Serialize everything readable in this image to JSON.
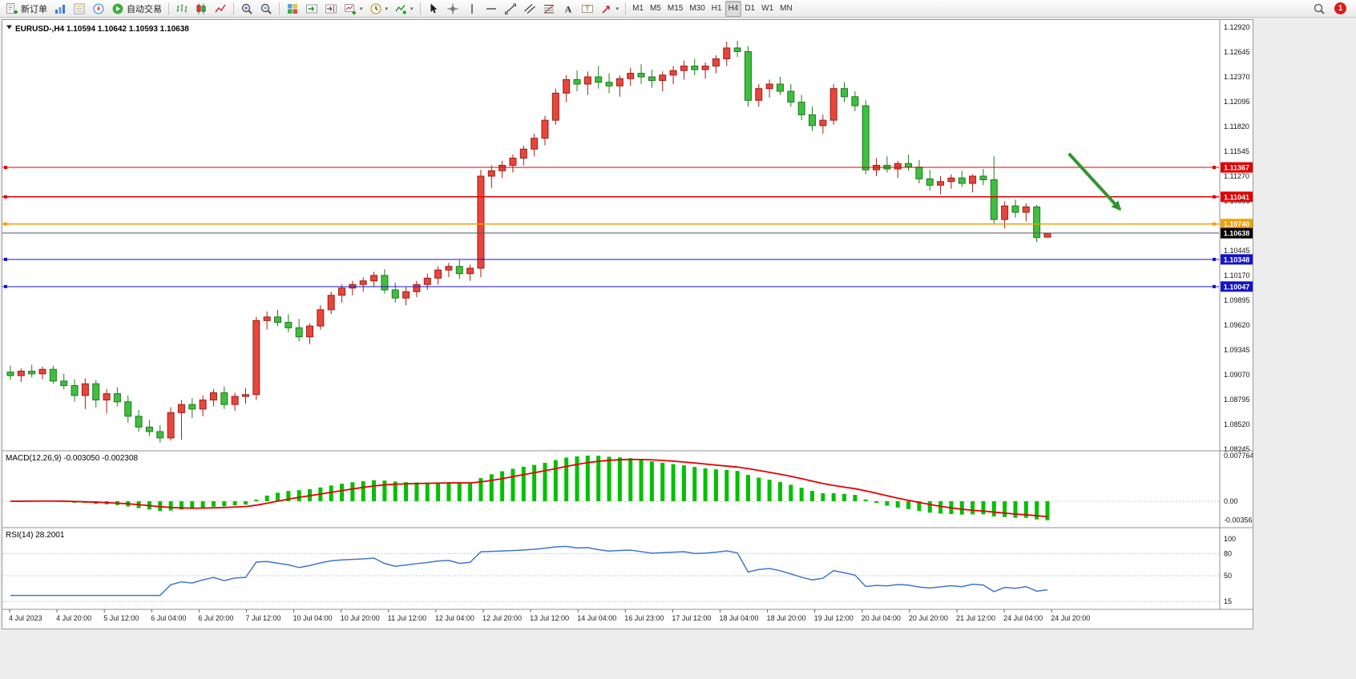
{
  "toolbar": {
    "notification_count": "1",
    "groups": [
      {
        "name": "trade",
        "buttons": [
          {
            "name": "new-order-button",
            "icon": "new-order-icon",
            "label": "新订单"
          },
          {
            "name": "market-watch-button",
            "icon": "market-watch-icon"
          },
          {
            "name": "data-window-button",
            "icon": "data-window-icon"
          },
          {
            "name": "navigator-button",
            "icon": "navigator-icon"
          },
          {
            "name": "auto-trading-button",
            "icon": "play-icon",
            "label": "自动交易"
          }
        ]
      },
      {
        "name": "chart-type",
        "buttons": [
          {
            "name": "bar-chart-button",
            "icon": "bar-chart-icon"
          },
          {
            "name": "candlestick-button",
            "icon": "candlestick-icon"
          },
          {
            "name": "line-chart-button",
            "icon": "line-chart-icon"
          }
        ]
      },
      {
        "name": "zoom",
        "buttons": [
          {
            "name": "zoom-in-button",
            "icon": "zoom-in-icon"
          },
          {
            "name": "zoom-out-button",
            "icon": "zoom-out-icon"
          }
        ]
      },
      {
        "name": "windows",
        "buttons": [
          {
            "name": "tile-windows-button",
            "icon": "tile-windows-icon"
          },
          {
            "name": "auto-scroll-button",
            "icon": "auto-scroll-icon"
          },
          {
            "name": "chart-shift-button",
            "icon": "chart-shift-icon"
          },
          {
            "name": "new-chart-button",
            "icon": "new-chart-icon",
            "dropdown": true
          },
          {
            "name": "period-button",
            "icon": "clock-icon",
            "dropdown": true
          },
          {
            "name": "indicators-button",
            "icon": "indicators-icon",
            "dropdown": true
          }
        ]
      },
      {
        "name": "drawing",
        "buttons": [
          {
            "name": "cursor-button",
            "icon": "cursor-icon"
          },
          {
            "name": "crosshair-button",
            "icon": "crosshair-icon"
          },
          {
            "name": "vertical-line-button",
            "icon": "vertical-line-icon"
          },
          {
            "name": "horizontal-line-button",
            "icon": "horizontal-line-icon"
          },
          {
            "name": "trendline-button",
            "icon": "trendline-icon"
          },
          {
            "name": "channel-button",
            "icon": "channel-icon"
          },
          {
            "name": "fibonacci-button",
            "icon": "fibonacci-icon"
          },
          {
            "name": "text-button",
            "icon": "text-icon"
          },
          {
            "name": "text-label-button",
            "icon": "text-label-icon"
          },
          {
            "name": "arrows-button",
            "icon": "arrow-icon",
            "dropdown": true
          }
        ]
      },
      {
        "name": "timeframes",
        "buttons": [
          {
            "name": "timeframe-m1",
            "label": "M1"
          },
          {
            "name": "timeframe-m5",
            "label": "M5"
          },
          {
            "name": "timeframe-m15",
            "label": "M15"
          },
          {
            "name": "timeframe-m30",
            "label": "M30"
          },
          {
            "name": "timeframe-h1",
            "label": "H1"
          },
          {
            "name": "timeframe-h4",
            "label": "H4",
            "active": true
          },
          {
            "name": "timeframe-d1",
            "label": "D1"
          },
          {
            "name": "timeframe-w1",
            "label": "W1"
          },
          {
            "name": "timeframe-mn",
            "label": "MN"
          }
        ]
      }
    ]
  },
  "chart_data": {
    "type": "candlestick",
    "symbol": "EURUSD-",
    "timeframe": "H4",
    "quote": {
      "open": "1.10594",
      "high": "1.10642",
      "low": "1.10593",
      "close": "1.10638"
    },
    "colors": {
      "background": "#FFFFFF",
      "up_fill": "#E8453C",
      "up_stroke": "#9E1F17",
      "down_fill": "#3FBF3F",
      "down_stroke": "#1F7A1F"
    },
    "price_axis": [
      "1.12920",
      "1.12645",
      "1.12370",
      "1.12095",
      "1.11820",
      "1.11545",
      "1.11270",
      "1.10995",
      "1.10720",
      "1.10445",
      "1.10170",
      "1.09895",
      "1.09620",
      "1.09345",
      "1.09070",
      "1.08795",
      "1.08520",
      "1.08245"
    ],
    "time_axis": [
      "4 Jul 2023",
      "4 Jul 20:00",
      "5 Jul 12:00",
      "6 Jul 04:00",
      "6 Jul 20:00",
      "7 Jul 12:00",
      "10 Jul 04:00",
      "10 Jul 20:00",
      "11 Jul 12:00",
      "12 Jul 04:00",
      "12 Jul 20:00",
      "13 Jul 12:00",
      "14 Jul 04:00",
      "16 Jul 23:00",
      "17 Jul 12:00",
      "18 Jul 04:00",
      "18 Jul 20:00",
      "19 Jul 12:00",
      "20 Jul 04:00",
      "20 Jul 20:00",
      "21 Jul 12:00",
      "24 Jul 04:00",
      "24 Jul 20:00"
    ],
    "hlines": [
      {
        "name": "resistance-line-1",
        "price": 1.11367,
        "label": "1.11367",
        "color": "#E00000"
      },
      {
        "name": "resistance-line-2",
        "price": 1.11041,
        "label": "1.11041",
        "color": "#E00000"
      },
      {
        "name": "pivot-line",
        "price": 1.1074,
        "label": "1.10740",
        "color": "#F0A000"
      },
      {
        "name": "support-line-1",
        "price": 1.10348,
        "label": "1.10348",
        "color": "#1414C8"
      },
      {
        "name": "support-line-2",
        "price": 1.10047,
        "label": "1.10047",
        "color": "#1414C8"
      }
    ],
    "current_price": {
      "price": 1.10638,
      "label": "1.10638",
      "line_color": "#555555",
      "box_color": "#000000"
    },
    "arrow_annotation": {
      "from_index": 99,
      "from_price": 1.1152,
      "to_index": 103.8,
      "to_price": 1.109,
      "color": "#2E962E"
    },
    "indicators": [
      {
        "name": "MACD",
        "label": "MACD(12,26,9) -0.003050 -0.002308",
        "params": [
          12,
          26,
          9
        ],
        "values_text": [
          "-0.003050",
          "-0.002308"
        ],
        "axis": [
          "0.007764",
          "0.00",
          "-0.003565"
        ],
        "histogram_color": "#00C000",
        "signal_color": "#E80000"
      },
      {
        "name": "RSI",
        "label": "RSI(14) 28.2001",
        "params": [
          14
        ],
        "value": 28.2001,
        "axis": [
          "100",
          "80",
          "50",
          "15"
        ],
        "levels": [
          80,
          50,
          15
        ],
        "line_color": "#3F77C8"
      }
    ],
    "candles": [
      [
        1.091,
        1.0917,
        1.0901,
        1.0906
      ],
      [
        1.0906,
        1.0914,
        1.0899,
        1.0911
      ],
      [
        1.0911,
        1.0918,
        1.0904,
        1.0908
      ],
      [
        1.0908,
        1.0916,
        1.0902,
        1.0913
      ],
      [
        1.0913,
        1.0917,
        1.0897,
        1.09
      ],
      [
        1.09,
        1.0908,
        1.0891,
        1.0895
      ],
      [
        1.0895,
        1.0902,
        1.0877,
        1.0884
      ],
      [
        1.0884,
        1.0903,
        1.0869,
        1.0897
      ],
      [
        1.0897,
        1.0901,
        1.0871,
        1.0879
      ],
      [
        1.0879,
        1.0891,
        1.0864,
        1.0886
      ],
      [
        1.0886,
        1.0893,
        1.0872,
        1.0877
      ],
      [
        1.0877,
        1.0884,
        1.0854,
        1.0861
      ],
      [
        1.0861,
        1.0868,
        1.0844,
        1.0849
      ],
      [
        1.0849,
        1.0857,
        1.0839,
        1.0844
      ],
      [
        1.0844,
        1.0851,
        1.0832,
        1.0837
      ],
      [
        1.0837,
        1.0871,
        1.0834,
        1.0865
      ],
      [
        1.0865,
        1.0879,
        1.0835,
        1.0874
      ],
      [
        1.0874,
        1.0881,
        1.0859,
        1.0869
      ],
      [
        1.0869,
        1.0884,
        1.0861,
        1.0879
      ],
      [
        1.0879,
        1.0891,
        1.0872,
        1.0887
      ],
      [
        1.0887,
        1.0894,
        1.0869,
        1.0874
      ],
      [
        1.0874,
        1.0887,
        1.0867,
        1.0883
      ],
      [
        1.0883,
        1.0892,
        1.0875,
        1.0885
      ],
      [
        1.0885,
        1.0971,
        1.0879,
        1.0967
      ],
      [
        1.0967,
        1.0977,
        1.0957,
        1.0971
      ],
      [
        1.0971,
        1.0979,
        1.0961,
        1.0965
      ],
      [
        1.0965,
        1.0974,
        1.0954,
        1.0959
      ],
      [
        1.0959,
        1.0969,
        1.0944,
        1.0949
      ],
      [
        1.0949,
        1.0964,
        1.0941,
        1.0961
      ],
      [
        1.0961,
        1.0984,
        1.0957,
        1.0979
      ],
      [
        1.0979,
        1.0999,
        1.0974,
        1.0995
      ],
      [
        1.0995,
        1.1007,
        1.0987,
        1.1003
      ],
      [
        1.1003,
        1.1011,
        1.0995,
        1.1007
      ],
      [
        1.1007,
        1.1015,
        1.0999,
        1.1011
      ],
      [
        1.1011,
        1.1021,
        1.1004,
        1.1017
      ],
      [
        1.1017,
        1.1024,
        1.0997,
        1.1001
      ],
      [
        1.1001,
        1.1009,
        1.0987,
        1.0992
      ],
      [
        1.0992,
        1.1004,
        1.0984,
        1.0999
      ],
      [
        1.0999,
        1.1011,
        1.0993,
        1.1007
      ],
      [
        1.1007,
        1.1019,
        1.1001,
        1.1014
      ],
      [
        1.1014,
        1.1027,
        1.1007,
        1.1023
      ],
      [
        1.1023,
        1.1031,
        1.1015,
        1.1027
      ],
      [
        1.1027,
        1.1034,
        1.1013,
        1.1019
      ],
      [
        1.1019,
        1.1029,
        1.1011,
        1.1025
      ],
      [
        1.1025,
        1.1134,
        1.1015,
        1.1127
      ],
      [
        1.1127,
        1.1139,
        1.1114,
        1.1133
      ],
      [
        1.1133,
        1.1144,
        1.1125,
        1.1139
      ],
      [
        1.1139,
        1.1151,
        1.1131,
        1.1147
      ],
      [
        1.1147,
        1.1161,
        1.1139,
        1.1157
      ],
      [
        1.1157,
        1.1174,
        1.1149,
        1.1169
      ],
      [
        1.1169,
        1.1194,
        1.1161,
        1.1189
      ],
      [
        1.1189,
        1.1224,
        1.1184,
        1.1219
      ],
      [
        1.1219,
        1.1239,
        1.1209,
        1.1234
      ],
      [
        1.1234,
        1.1244,
        1.1221,
        1.1229
      ],
      [
        1.1229,
        1.1243,
        1.1217,
        1.1237
      ],
      [
        1.1237,
        1.1249,
        1.1224,
        1.1231
      ],
      [
        1.1231,
        1.1241,
        1.1219,
        1.1227
      ],
      [
        1.1227,
        1.1239,
        1.1215,
        1.1235
      ],
      [
        1.1235,
        1.1247,
        1.1227,
        1.1241
      ],
      [
        1.1241,
        1.1251,
        1.1229,
        1.1237
      ],
      [
        1.1237,
        1.1245,
        1.1225,
        1.1233
      ],
      [
        1.1233,
        1.1243,
        1.1221,
        1.1239
      ],
      [
        1.1239,
        1.1249,
        1.1229,
        1.1244
      ],
      [
        1.1244,
        1.1255,
        1.1234,
        1.1249
      ],
      [
        1.1249,
        1.1257,
        1.1239,
        1.1245
      ],
      [
        1.1245,
        1.1253,
        1.1235,
        1.1249
      ],
      [
        1.1249,
        1.1261,
        1.1241,
        1.1257
      ],
      [
        1.1257,
        1.1276,
        1.1249,
        1.1269
      ],
      [
        1.1269,
        1.1277,
        1.1259,
        1.1265
      ],
      [
        1.1265,
        1.1271,
        1.1204,
        1.1211
      ],
      [
        1.1211,
        1.1229,
        1.1204,
        1.1224
      ],
      [
        1.1224,
        1.1234,
        1.1214,
        1.1229
      ],
      [
        1.1229,
        1.1237,
        1.1217,
        1.1221
      ],
      [
        1.1221,
        1.1229,
        1.1204,
        1.1209
      ],
      [
        1.1209,
        1.1217,
        1.1189,
        1.1195
      ],
      [
        1.1195,
        1.1204,
        1.1177,
        1.1183
      ],
      [
        1.1183,
        1.1195,
        1.1174,
        1.1189
      ],
      [
        1.1189,
        1.1229,
        1.1184,
        1.1224
      ],
      [
        1.1224,
        1.1231,
        1.1209,
        1.1215
      ],
      [
        1.1215,
        1.1221,
        1.1199,
        1.1205
      ],
      [
        1.1205,
        1.1211,
        1.1129,
        1.1134
      ],
      [
        1.1134,
        1.1147,
        1.1127,
        1.1139
      ],
      [
        1.1139,
        1.1149,
        1.1131,
        1.1135
      ],
      [
        1.1135,
        1.1144,
        1.1125,
        1.1141
      ],
      [
        1.1141,
        1.1151,
        1.1133,
        1.1137
      ],
      [
        1.1137,
        1.1145,
        1.1119,
        1.1124
      ],
      [
        1.1124,
        1.1134,
        1.1111,
        1.1117
      ],
      [
        1.1117,
        1.1127,
        1.1107,
        1.1121
      ],
      [
        1.1121,
        1.1129,
        1.1113,
        1.1125
      ],
      [
        1.1125,
        1.1133,
        1.1115,
        1.1119
      ],
      [
        1.1119,
        1.1129,
        1.1109,
        1.1127
      ],
      [
        1.1127,
        1.1135,
        1.1117,
        1.1123
      ],
      [
        1.1123,
        1.1149,
        1.1074,
        1.1079
      ],
      [
        1.1079,
        1.1099,
        1.1069,
        1.1094
      ],
      [
        1.1094,
        1.1101,
        1.1081,
        1.1087
      ],
      [
        1.1087,
        1.1097,
        1.1077,
        1.1093
      ],
      [
        1.1093,
        1.1095,
        1.1054,
        1.1059
      ],
      [
        1.10594,
        1.10642,
        1.10593,
        1.10638
      ]
    ]
  }
}
